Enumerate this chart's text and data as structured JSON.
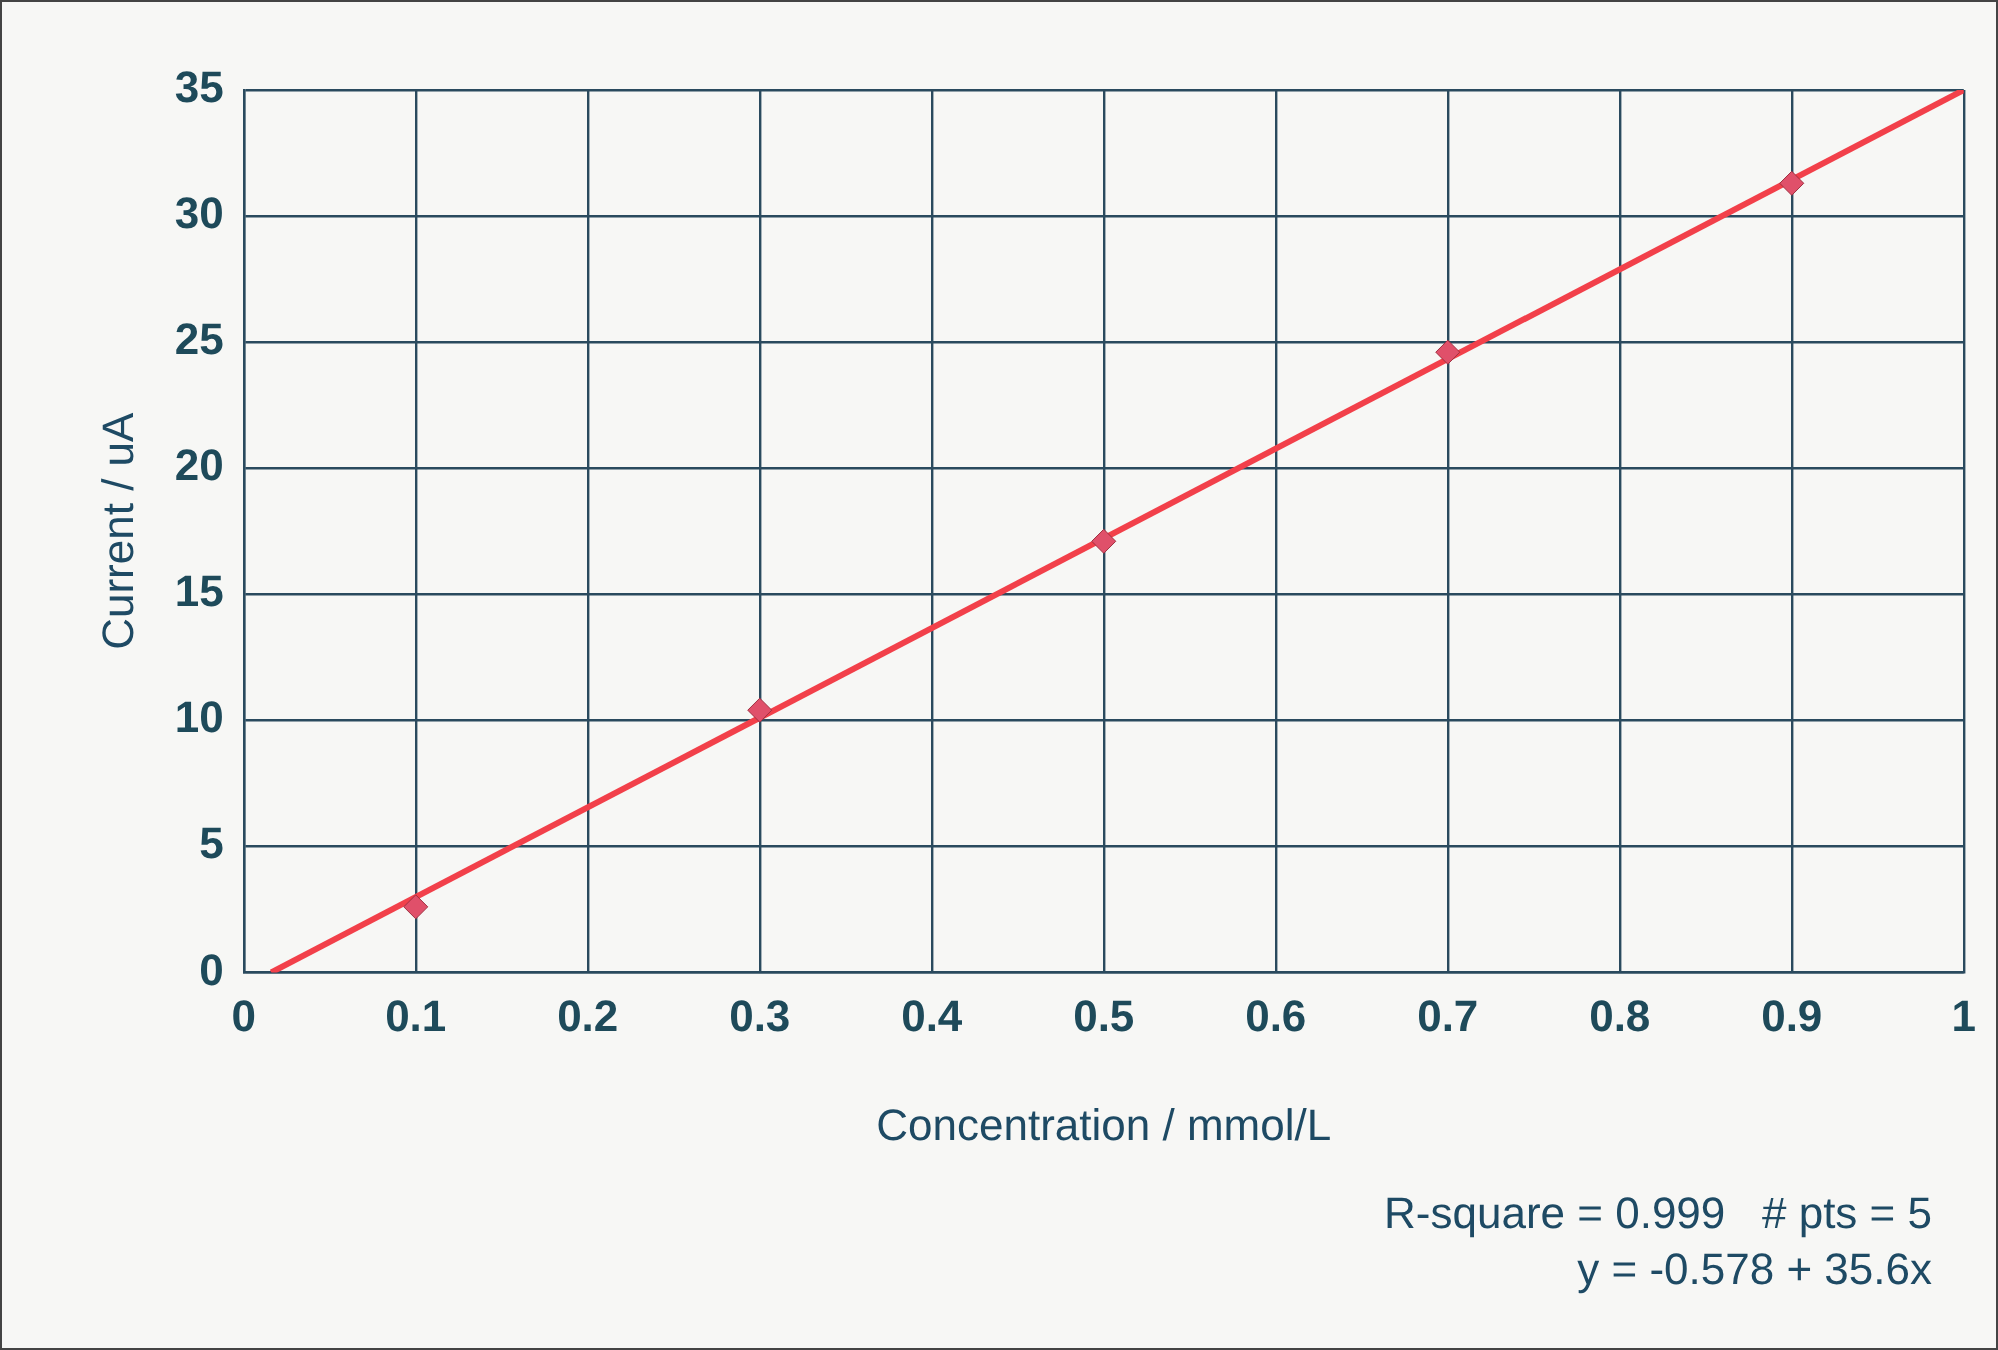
{
  "chart_data": {
    "type": "scatter",
    "xlabel": "Concentration / mmol/L",
    "ylabel": "Current / uA",
    "series": [
      {
        "type": "scatter",
        "color": "#e0506a",
        "marker": "diamond",
        "x": [
          0.1,
          0.3,
          0.5,
          0.7,
          0.9
        ],
        "values": [
          2.6,
          10.4,
          17.1,
          24.6,
          31.3
        ]
      },
      {
        "type": "line",
        "color": "#f2404a",
        "marker": "none",
        "line_style": "solid",
        "x": [
          0.016,
          1
        ],
        "values": [
          0,
          35.0
        ]
      }
    ],
    "xlim": [
      0,
      1
    ],
    "xticks": [
      0,
      0.1,
      0.2,
      0.3,
      0.4,
      0.5,
      0.6,
      0.7,
      0.8,
      0.9,
      1
    ],
    "ylim": [
      0,
      35
    ],
    "yticks": [
      0,
      5,
      10,
      15,
      20,
      25,
      30,
      35
    ],
    "grid": true,
    "legend": false,
    "annotations": [
      "R-square = 0.999   # pts = 5",
      "y = -0.578 + 35.6x"
    ]
  }
}
